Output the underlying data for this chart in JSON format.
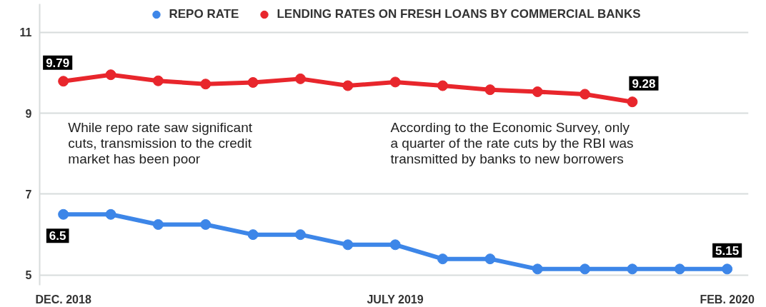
{
  "chart_data": {
    "type": "line",
    "categories": [
      "DEC. 2018",
      null,
      null,
      null,
      null,
      null,
      null,
      "JULY 2019",
      null,
      null,
      null,
      null,
      null,
      null,
      "FEB. 2020"
    ],
    "series": [
      {
        "name": "REPO RATE",
        "color": "#3d86e8",
        "values": [
          6.5,
          6.5,
          6.25,
          6.25,
          6.0,
          6.0,
          5.75,
          5.75,
          5.4,
          5.4,
          5.15,
          5.15,
          5.15,
          5.15,
          5.15
        ],
        "value_labels": [
          "6.5",
          null,
          null,
          null,
          null,
          null,
          null,
          null,
          null,
          null,
          null,
          null,
          null,
          null,
          "5.15"
        ]
      },
      {
        "name": "LENDING RATES ON FRESH LOANS BY COMMERCIAL BANKS",
        "color": "#e8262c",
        "values": [
          9.79,
          9.95,
          9.8,
          9.72,
          9.76,
          9.85,
          9.68,
          9.77,
          9.68,
          9.58,
          9.53,
          9.47,
          9.28,
          null,
          null
        ],
        "value_labels": [
          "9.79",
          null,
          null,
          null,
          null,
          null,
          null,
          null,
          null,
          null,
          null,
          null,
          "9.28",
          null,
          null
        ]
      }
    ],
    "annotations": [
      "While repo rate saw significant\ncuts, transmission to the credit\nmarket has been poor",
      "According to the Economic Survey, only\na quarter of the rate cuts by the RBI was\ntransmitted by banks to new borrowers"
    ],
    "ylim": [
      4.75,
      11.7
    ],
    "yticks": [
      5,
      7,
      9,
      11
    ],
    "grid": "y",
    "legend": "top",
    "marker": "circle",
    "line_style": "solid"
  }
}
